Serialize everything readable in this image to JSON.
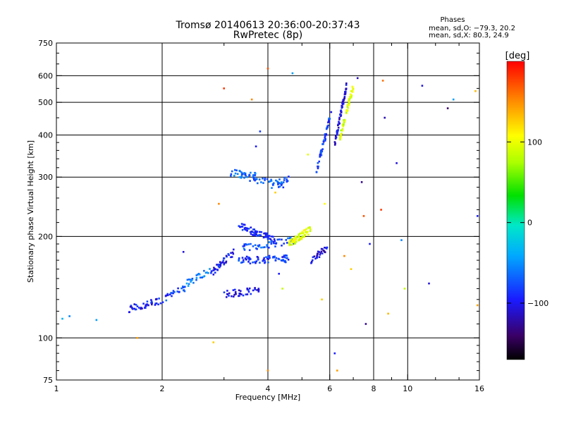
{
  "header": {
    "title": "Tromsø 20140613 20:36:00-20:37:43",
    "subtitle": "RwPretec (8p)"
  },
  "stats": {
    "title": "Phases",
    "line_o": "mean, sd,O: −79.3, 20.2",
    "line_x": "mean, sd,X:  80.3, 24.9"
  },
  "colorbar": {
    "unit_label": "[deg]",
    "ticks": [
      {
        "value": 100,
        "label": "100"
      },
      {
        "value": 0,
        "label": "0"
      },
      {
        "value": -100,
        "label": "−100"
      }
    ],
    "range": [
      -170,
      200
    ]
  },
  "chart_data": {
    "type": "scatter",
    "title": "Tromsø 20140613 20:36:00-20:37:43",
    "subtitle": "RwPretec (8p)",
    "xlabel": "Frequency [MHz]",
    "ylabel": "Stationary phase Virtual Height [km]",
    "xscale": "log",
    "yscale": "log",
    "xlim": [
      1,
      16
    ],
    "ylim": [
      75,
      750
    ],
    "xticks": [
      1,
      2,
      4,
      6,
      8,
      10,
      16
    ],
    "yticks": [
      75,
      100,
      200,
      300,
      400,
      500,
      600,
      750
    ],
    "vgrid": [
      2,
      4,
      6,
      8,
      10
    ],
    "hgrid": [
      100,
      200,
      300,
      400,
      500,
      600
    ],
    "minor_x": [
      3,
      5,
      7,
      9,
      12,
      14
    ],
    "color_by": "phase [deg]",
    "clusters": [
      {
        "f0": 1.6,
        "f1": 1.95,
        "h0": 122,
        "h1": 128,
        "n": 40,
        "phase": -100
      },
      {
        "f0": 1.95,
        "f1": 2.35,
        "h0": 128,
        "h1": 142,
        "n": 30,
        "phase": -85
      },
      {
        "f0": 2.35,
        "f1": 2.75,
        "h0": 145,
        "h1": 160,
        "n": 25,
        "phase": -60
      },
      {
        "f0": 2.75,
        "f1": 3.2,
        "h0": 155,
        "h1": 180,
        "n": 45,
        "phase": -100
      },
      {
        "f0": 3.0,
        "f1": 3.8,
        "h0": 135,
        "h1": 138,
        "n": 40,
        "phase": -105
      },
      {
        "f0": 3.3,
        "f1": 4.6,
        "h0": 170,
        "h1": 172,
        "n": 70,
        "phase": -90
      },
      {
        "f0": 3.3,
        "f1": 4.2,
        "h0": 215,
        "h1": 195,
        "n": 70,
        "phase": -95
      },
      {
        "f0": 3.4,
        "f1": 4.8,
        "h0": 185,
        "h1": 195,
        "n": 50,
        "phase": -80
      },
      {
        "f0": 3.3,
        "f1": 4.5,
        "h0": 305,
        "h1": 280,
        "n": 40,
        "phase": -75
      },
      {
        "f0": 3.1,
        "f1": 3.8,
        "h0": 310,
        "h1": 300,
        "n": 30,
        "phase": -70
      },
      {
        "f0": 4.1,
        "f1": 4.6,
        "h0": 285,
        "h1": 300,
        "n": 20,
        "phase": -75
      },
      {
        "f0": 4.6,
        "f1": 5.3,
        "h0": 190,
        "h1": 210,
        "n": 70,
        "phase": 90
      },
      {
        "f0": 5.3,
        "f1": 5.9,
        "h0": 170,
        "h1": 185,
        "n": 30,
        "phase": -110
      },
      {
        "f0": 5.5,
        "f1": 6.1,
        "h0": 310,
        "h1": 480,
        "n": 50,
        "phase": -90
      },
      {
        "f0": 6.2,
        "f1": 6.7,
        "h0": 380,
        "h1": 560,
        "n": 60,
        "phase": -110
      },
      {
        "f0": 6.4,
        "f1": 7.0,
        "h0": 390,
        "h1": 560,
        "n": 60,
        "phase": 85
      }
    ],
    "scatter": [
      {
        "x": 1.04,
        "y": 114,
        "phase": -40
      },
      {
        "x": 1.09,
        "y": 116,
        "phase": -60
      },
      {
        "x": 1.3,
        "y": 113,
        "phase": -50
      },
      {
        "x": 1.7,
        "y": 100,
        "phase": 140
      },
      {
        "x": 2.3,
        "y": 180,
        "phase": -110
      },
      {
        "x": 2.8,
        "y": 97,
        "phase": 120
      },
      {
        "x": 2.9,
        "y": 250,
        "phase": 150
      },
      {
        "x": 3.0,
        "y": 550,
        "phase": 180
      },
      {
        "x": 3.6,
        "y": 510,
        "phase": 150
      },
      {
        "x": 3.7,
        "y": 370,
        "phase": -100
      },
      {
        "x": 3.8,
        "y": 410,
        "phase": -90
      },
      {
        "x": 4.0,
        "y": 630,
        "phase": 170
      },
      {
        "x": 4.0,
        "y": 80,
        "phase": 150
      },
      {
        "x": 4.2,
        "y": 270,
        "phase": 120
      },
      {
        "x": 4.3,
        "y": 155,
        "phase": -100
      },
      {
        "x": 4.4,
        "y": 140,
        "phase": 80
      },
      {
        "x": 4.7,
        "y": 610,
        "phase": -50
      },
      {
        "x": 5.2,
        "y": 350,
        "phase": 90
      },
      {
        "x": 5.7,
        "y": 130,
        "phase": 120
      },
      {
        "x": 5.8,
        "y": 250,
        "phase": 100
      },
      {
        "x": 6.2,
        "y": 90,
        "phase": -100
      },
      {
        "x": 6.3,
        "y": 80,
        "phase": 140
      },
      {
        "x": 6.6,
        "y": 175,
        "phase": 150
      },
      {
        "x": 6.9,
        "y": 160,
        "phase": 120
      },
      {
        "x": 7.2,
        "y": 590,
        "phase": -120
      },
      {
        "x": 7.4,
        "y": 290,
        "phase": -130
      },
      {
        "x": 7.5,
        "y": 230,
        "phase": 170
      },
      {
        "x": 7.6,
        "y": 110,
        "phase": -130
      },
      {
        "x": 7.8,
        "y": 190,
        "phase": -100
      },
      {
        "x": 8.4,
        "y": 240,
        "phase": 180
      },
      {
        "x": 8.6,
        "y": 450,
        "phase": -120
      },
      {
        "x": 8.5,
        "y": 580,
        "phase": 160
      },
      {
        "x": 8.8,
        "y": 118,
        "phase": 130
      },
      {
        "x": 9.3,
        "y": 330,
        "phase": -110
      },
      {
        "x": 9.6,
        "y": 195,
        "phase": -60
      },
      {
        "x": 9.8,
        "y": 140,
        "phase": 80
      },
      {
        "x": 11.0,
        "y": 560,
        "phase": -110
      },
      {
        "x": 11.5,
        "y": 145,
        "phase": -110
      },
      {
        "x": 13.0,
        "y": 480,
        "phase": -140
      },
      {
        "x": 13.5,
        "y": 510,
        "phase": -50
      },
      {
        "x": 15.8,
        "y": 230,
        "phase": -100
      },
      {
        "x": 15.8,
        "y": 125,
        "phase": 140
      },
      {
        "x": 15.6,
        "y": 540,
        "phase": 130
      }
    ]
  }
}
